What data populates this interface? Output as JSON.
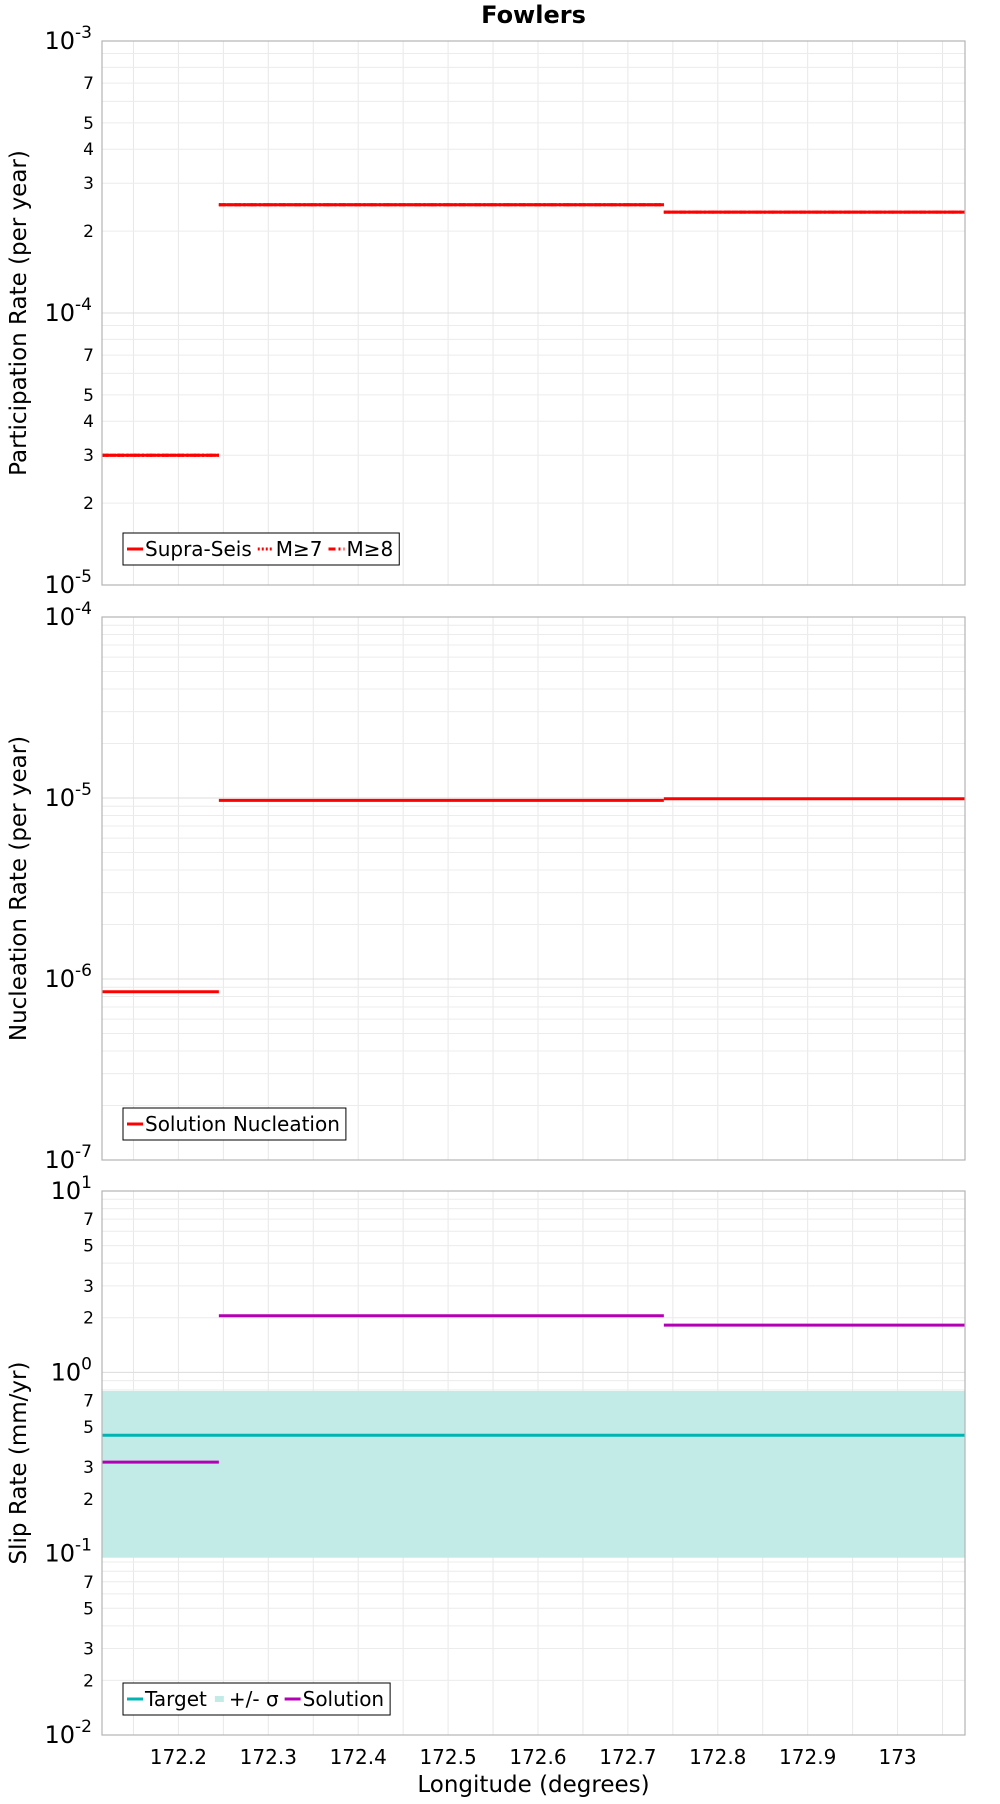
{
  "title": "Fowlers",
  "xlabel": "Longitude (degrees)",
  "x_ticks": [
    "172.2",
    "172.3",
    "172.4",
    "172.5",
    "172.6",
    "172.7",
    "172.8",
    "172.9",
    "173"
  ],
  "chart_data": [
    {
      "type": "line",
      "panel": "participation",
      "ylabel": "Participation Rate (per year)",
      "y_scale": "log",
      "ylim": [
        1e-05,
        0.001
      ],
      "xlim": [
        172.115,
        173.075
      ],
      "grid": true,
      "legend_position": "bottom-left",
      "series": [
        {
          "name": "Supra-Seis",
          "style": "solid",
          "color": "#ff0000",
          "segments": [
            [
              172.115,
              172.245,
              3e-05
            ],
            [
              172.245,
              172.74,
              0.00025
            ],
            [
              172.74,
              173.075,
              0.000235
            ]
          ]
        },
        {
          "name": "M≥7",
          "style": "dotted",
          "color": "#ff0000",
          "segments": [
            [
              172.115,
              172.245,
              3e-05
            ],
            [
              172.245,
              172.74,
              0.00025
            ],
            [
              172.74,
              173.075,
              0.000235
            ]
          ]
        },
        {
          "name": "M≥8",
          "style": "dashdot",
          "color": "#ff0000",
          "segments": [
            [
              172.115,
              172.245,
              3e-05
            ],
            [
              172.245,
              172.74,
              0.00025
            ],
            [
              172.74,
              173.075,
              0.000235
            ]
          ]
        }
      ]
    },
    {
      "type": "line",
      "panel": "nucleation",
      "ylabel": "Nucleation Rate (per year)",
      "y_scale": "log",
      "ylim": [
        1e-07,
        0.0001
      ],
      "xlim": [
        172.115,
        173.075
      ],
      "grid": true,
      "legend_position": "bottom-left",
      "series": [
        {
          "name": "Solution Nucleation",
          "style": "solid",
          "color": "#ff0000",
          "segments": [
            [
              172.115,
              172.245,
              8.5e-07
            ],
            [
              172.245,
              172.74,
              9.7e-06
            ],
            [
              172.74,
              173.075,
              9.9e-06
            ]
          ]
        }
      ]
    },
    {
      "type": "line",
      "panel": "slip",
      "ylabel": "Slip Rate (mm/yr)",
      "y_scale": "log",
      "ylim": [
        0.01,
        10
      ],
      "xlim": [
        172.115,
        173.075
      ],
      "grid": true,
      "legend_position": "bottom-left",
      "band": {
        "name": "+/- σ",
        "color": "#c2ebe8",
        "range": [
          0.095,
          0.79
        ]
      },
      "series": [
        {
          "name": "Target",
          "style": "solid",
          "color": "#00b4b4",
          "segments": [
            [
              172.115,
              173.075,
              0.45
            ]
          ]
        },
        {
          "name": "Solution",
          "style": "solid",
          "color": "#b400b4",
          "segments": [
            [
              172.115,
              172.245,
              0.32
            ],
            [
              172.245,
              172.74,
              2.05
            ],
            [
              172.74,
              173.075,
              1.82
            ]
          ]
        }
      ]
    }
  ]
}
